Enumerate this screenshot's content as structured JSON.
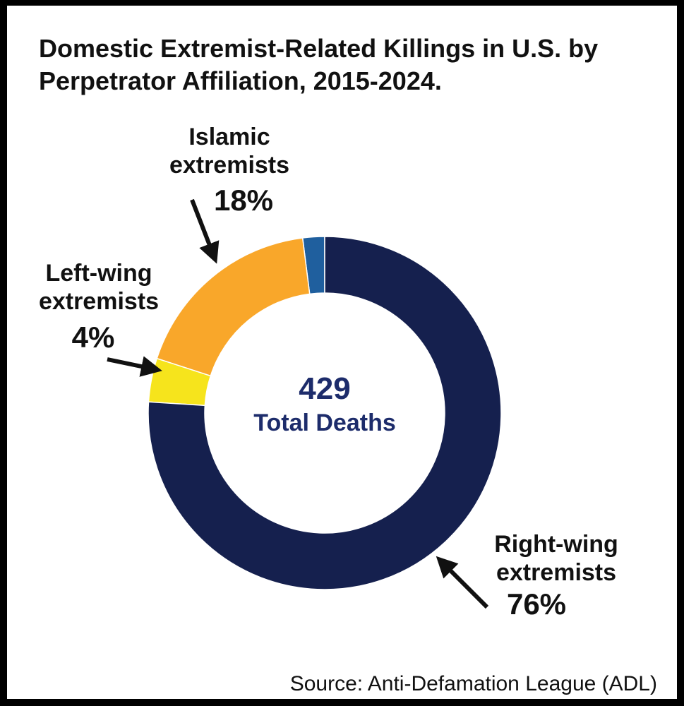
{
  "chart_data": {
    "type": "donut",
    "title": "Domestic Extremist-Related Killings in U.S. by Perpetrator Affiliation, 2015-2024.",
    "categories": [
      "Right-wing extremists",
      "Left-wing extremists",
      "Islamic extremists",
      null
    ],
    "values": [
      76,
      4,
      18,
      2
    ],
    "value_labels": [
      "76%",
      "4%",
      "18%",
      null
    ],
    "colors": [
      "#15204e",
      "#f6e41c",
      "#f9a72a",
      "#1f5f9e"
    ],
    "center_value": 429,
    "center_label": "Total Deaths",
    "source": "Source: Anti-Defamation League (ADL)"
  }
}
